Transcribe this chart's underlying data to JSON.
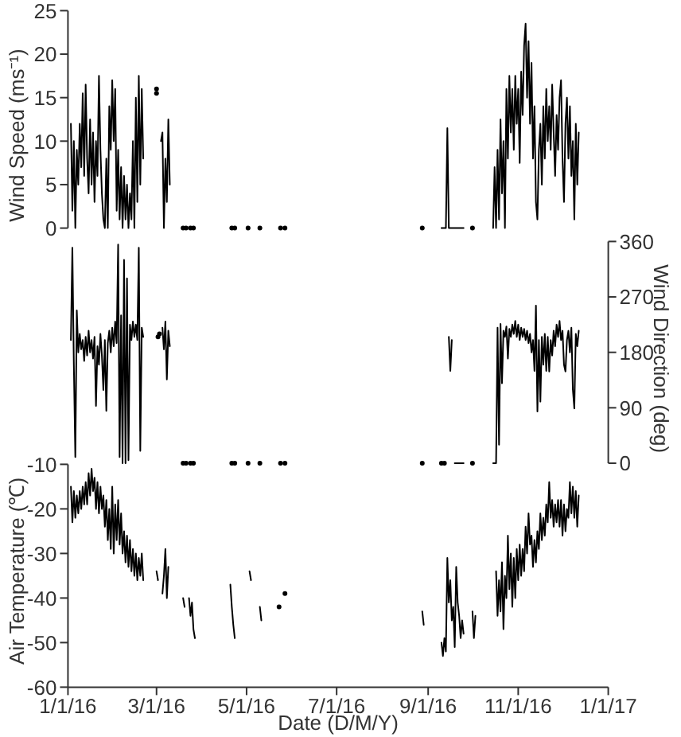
{
  "chart_data": [
    {
      "type": "line",
      "ylabel": "Wind Speed (ms⁻¹)",
      "xlim": [
        "2016-01-01",
        "2017-01-01"
      ],
      "ylim": [
        0,
        25
      ],
      "yticks": [
        0,
        5,
        10,
        15,
        20,
        25
      ],
      "tick_labels": "y",
      "x": [
        "2016-01-03",
        "2016-01-04",
        "2016-01-05",
        "2016-01-06",
        "2016-01-07",
        "2016-01-08",
        "2016-01-09",
        "2016-01-10",
        "2016-01-11",
        "2016-01-12",
        "2016-01-13",
        "2016-01-14",
        "2016-01-15",
        "2016-01-16",
        "2016-01-17",
        "2016-01-18",
        "2016-01-19",
        "2016-01-20",
        "2016-01-21",
        "2016-01-22",
        "2016-01-23",
        "2016-01-24",
        "2016-01-25",
        "2016-01-26",
        "2016-01-27",
        "2016-01-28",
        "2016-01-29",
        "2016-01-30",
        "2016-01-31",
        "2016-02-01",
        "2016-02-02",
        "2016-02-03",
        "2016-02-04",
        "2016-02-05",
        "2016-02-06",
        "2016-02-07",
        "2016-02-08",
        "2016-02-09",
        "2016-02-10",
        "2016-02-11",
        "2016-02-12",
        "2016-02-13",
        "2016-02-14",
        "2016-02-15",
        "2016-02-16",
        "2016-02-17",
        "2016-02-18",
        "2016-02-19",
        "2016-02-20",
        "2016-02-21",
        "2016-02-25",
        "2016-03-04",
        "2016-03-05",
        "2016-03-06",
        "2016-03-07",
        "2016-03-08",
        "2016-03-09",
        "2016-03-10",
        "2016-03-15",
        "2016-09-10",
        "2016-09-13",
        "2016-09-14",
        "2016-09-15",
        "2016-09-25",
        "2016-10-01",
        "2016-10-15",
        "2016-10-16",
        "2016-10-17",
        "2016-10-18",
        "2016-10-19",
        "2016-10-20",
        "2016-10-21",
        "2016-10-22",
        "2016-10-23",
        "2016-10-24",
        "2016-10-25",
        "2016-10-26",
        "2016-10-27",
        "2016-10-28",
        "2016-10-29",
        "2016-10-30",
        "2016-10-31",
        "2016-11-01",
        "2016-11-02",
        "2016-11-03",
        "2016-11-04",
        "2016-11-05",
        "2016-11-06",
        "2016-11-07",
        "2016-11-08",
        "2016-11-09",
        "2016-11-10",
        "2016-11-11",
        "2016-11-12",
        "2016-11-13",
        "2016-11-14",
        "2016-11-15",
        "2016-11-16",
        "2016-11-17",
        "2016-11-18",
        "2016-11-19",
        "2016-11-20",
        "2016-11-21",
        "2016-11-22",
        "2016-11-23",
        "2016-11-24",
        "2016-11-25",
        "2016-11-26",
        "2016-11-27",
        "2016-11-28",
        "2016-11-29",
        "2016-11-30",
        "2016-12-01",
        "2016-12-02",
        "2016-12-03",
        "2016-12-04",
        "2016-12-05",
        "2016-12-06",
        "2016-12-07",
        "2016-12-08",
        "2016-12-09",
        "2016-12-10",
        "2016-12-11",
        "2016-12-12"
      ],
      "series": [
        {
          "color": "#000000",
          "values": [
            12,
            2,
            10,
            0,
            9,
            5,
            12,
            7,
            15.5,
            6,
            16.5,
            8,
            4,
            12.5,
            5,
            11,
            3,
            10,
            6,
            17.5,
            9,
            4,
            1,
            0,
            8,
            0,
            14,
            9,
            17,
            10,
            16,
            2,
            9,
            1,
            7,
            0,
            6,
            1,
            5,
            0,
            4,
            1,
            10,
            0,
            15,
            3,
            17.5,
            5,
            16,
            8,
            null,
            10,
            11,
            0,
            8,
            3,
            12.5,
            5,
            null,
            0,
            0,
            11.5,
            0,
            0,
            null,
            0,
            7,
            0,
            9,
            1,
            12.5,
            4,
            10,
            0,
            16,
            8,
            17.5,
            11,
            16,
            9,
            17.5,
            12,
            16,
            7.5,
            18,
            13,
            21,
            23.5,
            15,
            21.5,
            12,
            19,
            8,
            14,
            3,
            1,
            9,
            12,
            5,
            14,
            8,
            16,
            10,
            14,
            9,
            16.5,
            11,
            6,
            13,
            9,
            15,
            17,
            8,
            3,
            12,
            15,
            8,
            14,
            6,
            10,
            1,
            12,
            5,
            11
          ]
        },
        {
          "type": "scatter",
          "marker": "circle",
          "color": "#000000",
          "x": [
            "2016-03-01",
            "2016-03-01",
            "2016-03-19",
            "2016-03-21",
            "2016-03-24",
            "2016-03-26",
            "2016-04-21",
            "2016-04-23",
            "2016-05-02",
            "2016-05-10",
            "2016-05-24",
            "2016-05-27",
            "2016-08-28",
            "2016-10-01"
          ],
          "values": [
            15.5,
            16,
            0,
            0,
            0,
            0,
            0,
            0,
            0,
            0,
            0,
            0,
            0,
            0
          ]
        }
      ]
    },
    {
      "type": "line",
      "y2label": "Wind Direction (deg)",
      "xlim": [
        "2016-01-01",
        "2017-01-01"
      ],
      "y2lim": [
        0,
        360
      ],
      "y2ticks": [
        0,
        90,
        180,
        270,
        360
      ],
      "tick_labels": "y2",
      "x": [
        "2016-01-03",
        "2016-01-04",
        "2016-01-05",
        "2016-01-06",
        "2016-01-07",
        "2016-01-08",
        "2016-01-09",
        "2016-01-10",
        "2016-01-11",
        "2016-01-12",
        "2016-01-13",
        "2016-01-14",
        "2016-01-15",
        "2016-01-16",
        "2016-01-17",
        "2016-01-18",
        "2016-01-19",
        "2016-01-20",
        "2016-01-21",
        "2016-01-22",
        "2016-01-23",
        "2016-01-24",
        "2016-01-25",
        "2016-01-26",
        "2016-01-27",
        "2016-01-28",
        "2016-01-29",
        "2016-01-30",
        "2016-01-31",
        "2016-02-01",
        "2016-02-02",
        "2016-02-03",
        "2016-02-04",
        "2016-02-05",
        "2016-02-06",
        "2016-02-07",
        "2016-02-08",
        "2016-02-09",
        "2016-02-10",
        "2016-02-11",
        "2016-02-12",
        "2016-02-13",
        "2016-02-14",
        "2016-02-15",
        "2016-02-16",
        "2016-02-17",
        "2016-02-18",
        "2016-02-19",
        "2016-02-20",
        "2016-02-21",
        "2016-02-25",
        "2016-03-05",
        "2016-03-06",
        "2016-03-07",
        "2016-03-08",
        "2016-03-09",
        "2016-03-10",
        "2016-03-15",
        "2016-09-15",
        "2016-09-16",
        "2016-09-17",
        "2016-09-18",
        "2016-09-19",
        "2016-09-25",
        "2016-09-28",
        "2016-10-15",
        "2016-10-17",
        "2016-10-18",
        "2016-10-19",
        "2016-10-20",
        "2016-10-21",
        "2016-10-22",
        "2016-10-23",
        "2016-10-24",
        "2016-10-25",
        "2016-10-26",
        "2016-10-27",
        "2016-10-28",
        "2016-10-29",
        "2016-10-30",
        "2016-10-31",
        "2016-11-01",
        "2016-11-02",
        "2016-11-03",
        "2016-11-04",
        "2016-11-05",
        "2016-11-06",
        "2016-11-07",
        "2016-11-08",
        "2016-11-09",
        "2016-11-10",
        "2016-11-11",
        "2016-11-12",
        "2016-11-13",
        "2016-11-14",
        "2016-11-15",
        "2016-11-16",
        "2016-11-17",
        "2016-11-18",
        "2016-11-19",
        "2016-11-20",
        "2016-11-21",
        "2016-11-22",
        "2016-11-23",
        "2016-11-24",
        "2016-11-25",
        "2016-11-26",
        "2016-11-27",
        "2016-11-28",
        "2016-11-29",
        "2016-11-30",
        "2016-12-01",
        "2016-12-02",
        "2016-12-03",
        "2016-12-04",
        "2016-12-05",
        "2016-12-06",
        "2016-12-07",
        "2016-12-08",
        "2016-12-09",
        "2016-12-10",
        "2016-12-11",
        "2016-12-12"
      ],
      "series": [
        {
          "axis": "y2",
          "color": "#000000",
          "values": [
            200,
            350,
            160,
            10,
            248,
            180,
            210,
            185,
            200,
            166,
            205,
            175,
            215,
            180,
            200,
            170,
            205,
            93,
            190,
            160,
            210,
            175,
            119,
            200,
            85,
            195,
            215,
            180,
            220,
            190,
            230,
            195,
            355,
            10,
            240,
            0,
            330,
            0,
            300,
            5,
            225,
            200,
            230,
            205,
            225,
            200,
            350,
            20,
            220,
            205,
            null,
            220,
            185,
            230,
            136,
            215,
            190,
            null,
            205,
            150,
            200,
            null,
            0,
            0,
            null,
            0,
            0,
            220,
            30,
            226,
            130,
            215,
            205,
            222,
            170,
            218,
            205,
            225,
            210,
            231,
            205,
            225,
            200,
            220,
            205,
            218,
            200,
            215,
            195,
            210,
            180,
            200,
            150,
            256,
            84,
            200,
            100,
            205,
            160,
            210,
            150,
            205,
            149,
            200,
            175,
            215,
            190,
            225,
            205,
            231,
            200,
            215,
            160,
            149,
            200,
            215,
            180,
            220,
            120,
            89,
            210,
            190,
            215
          ]
        },
        {
          "type": "scatter",
          "marker": "circle",
          "axis": "y2",
          "color": "#000000",
          "x": [
            "2016-03-02",
            "2016-03-03",
            "2016-03-19",
            "2016-03-21",
            "2016-03-24",
            "2016-03-26",
            "2016-04-21",
            "2016-04-23",
            "2016-05-02",
            "2016-05-10",
            "2016-05-24",
            "2016-05-27",
            "2016-08-28",
            "2016-09-10",
            "2016-09-12",
            "2016-10-01"
          ],
          "values": [
            205,
            210,
            0,
            0,
            0,
            0,
            0,
            0,
            0,
            0,
            0,
            0,
            0,
            0,
            0,
            0
          ]
        }
      ]
    },
    {
      "type": "line",
      "xlabel": "Date (D/M/Y)",
      "ylabel": "Air Temperature (℃)",
      "xlim": [
        "2016-01-01",
        "2017-01-01"
      ],
      "xticks": [
        {
          "value": "2016-01-01",
          "label": "1/1/16"
        },
        {
          "value": "2016-03-01",
          "label": "3/1/16"
        },
        {
          "value": "2016-05-01",
          "label": "5/1/16"
        },
        {
          "value": "2016-07-01",
          "label": "7/1/16"
        },
        {
          "value": "2016-09-01",
          "label": "9/1/16"
        },
        {
          "value": "2016-11-01",
          "label": "11/1/16"
        },
        {
          "value": "2017-01-01",
          "label": "1/1/17"
        }
      ],
      "ylim": [
        -60,
        -10
      ],
      "yticks": [
        -60,
        -50,
        -40,
        -30,
        -20,
        -10
      ],
      "x": [
        "2016-01-03",
        "2016-01-04",
        "2016-01-05",
        "2016-01-06",
        "2016-01-07",
        "2016-01-08",
        "2016-01-09",
        "2016-01-10",
        "2016-01-11",
        "2016-01-12",
        "2016-01-13",
        "2016-01-14",
        "2016-01-15",
        "2016-01-16",
        "2016-01-17",
        "2016-01-18",
        "2016-01-19",
        "2016-01-20",
        "2016-01-21",
        "2016-01-22",
        "2016-01-23",
        "2016-01-24",
        "2016-01-25",
        "2016-01-26",
        "2016-01-27",
        "2016-01-28",
        "2016-01-29",
        "2016-01-30",
        "2016-01-31",
        "2016-02-01",
        "2016-02-02",
        "2016-02-03",
        "2016-02-04",
        "2016-02-05",
        "2016-02-06",
        "2016-02-07",
        "2016-02-08",
        "2016-02-09",
        "2016-02-10",
        "2016-02-11",
        "2016-02-12",
        "2016-02-13",
        "2016-02-14",
        "2016-02-15",
        "2016-02-16",
        "2016-02-17",
        "2016-02-18",
        "2016-02-19",
        "2016-02-20",
        "2016-02-21",
        "2016-02-25",
        "2016-03-01",
        "2016-03-02",
        "2016-03-03",
        "2016-03-05",
        "2016-03-06",
        "2016-03-07",
        "2016-03-08",
        "2016-03-09",
        "2016-03-14",
        "2016-03-19",
        "2016-03-20",
        "2016-03-21",
        "2016-03-23",
        "2016-03-24",
        "2016-03-25",
        "2016-03-26",
        "2016-03-27",
        "2016-04-05",
        "2016-04-20",
        "2016-04-21",
        "2016-04-22",
        "2016-04-23",
        "2016-04-28",
        "2016-05-03",
        "2016-05-04",
        "2016-05-07",
        "2016-05-10",
        "2016-05-11",
        "2016-05-17",
        "2016-08-28",
        "2016-08-29",
        "2016-09-05",
        "2016-09-10",
        "2016-09-11",
        "2016-09-12",
        "2016-09-13",
        "2016-09-14",
        "2016-09-15",
        "2016-09-16",
        "2016-09-17",
        "2016-09-18",
        "2016-09-19",
        "2016-09-20",
        "2016-09-21",
        "2016-09-22",
        "2016-09-23",
        "2016-09-24",
        "2016-09-25",
        "2016-09-28",
        "2016-10-01",
        "2016-10-02",
        "2016-10-03",
        "2016-10-10",
        "2016-10-17",
        "2016-10-18",
        "2016-10-19",
        "2016-10-20",
        "2016-10-21",
        "2016-10-22",
        "2016-10-23",
        "2016-10-24",
        "2016-10-25",
        "2016-10-26",
        "2016-10-27",
        "2016-10-28",
        "2016-10-29",
        "2016-10-30",
        "2016-10-31",
        "2016-11-01",
        "2016-11-02",
        "2016-11-03",
        "2016-11-04",
        "2016-11-05",
        "2016-11-06",
        "2016-11-07",
        "2016-11-08",
        "2016-11-09",
        "2016-11-10",
        "2016-11-11",
        "2016-11-12",
        "2016-11-13",
        "2016-11-14",
        "2016-11-15",
        "2016-11-16",
        "2016-11-17",
        "2016-11-18",
        "2016-11-19",
        "2016-11-20",
        "2016-11-21",
        "2016-11-22",
        "2016-11-23",
        "2016-11-24",
        "2016-11-25",
        "2016-11-26",
        "2016-11-27",
        "2016-11-28",
        "2016-11-29",
        "2016-11-30",
        "2016-12-01",
        "2016-12-02",
        "2016-12-03",
        "2016-12-04",
        "2016-12-05",
        "2016-12-06",
        "2016-12-07",
        "2016-12-08",
        "2016-12-09",
        "2016-12-10",
        "2016-12-11",
        "2016-12-12"
      ],
      "series": [
        {
          "color": "#000000",
          "values": [
            -15,
            -23,
            -16,
            -22,
            -17,
            -21,
            -16,
            -20,
            -15,
            -19,
            -14,
            -19,
            -12,
            -17,
            -11,
            -16,
            -13,
            -20,
            -14,
            -21,
            -15,
            -20,
            -17,
            -24,
            -18,
            -27,
            -20,
            -29,
            -15,
            -30,
            -19,
            -27,
            -18,
            -28,
            -21,
            -30,
            -25,
            -32,
            -26,
            -33,
            -27,
            -34,
            -29,
            -35,
            -30,
            -36,
            -31,
            -35,
            -30,
            -36,
            null,
            -34,
            -36,
            null,
            -39,
            -35,
            -29,
            -40,
            -33,
            null,
            -40,
            -42,
            null,
            -40,
            -44,
            -41,
            -47,
            -49,
            null,
            -37,
            -42,
            -46,
            -49,
            null,
            -34,
            -36,
            null,
            -42,
            -45,
            null,
            -43,
            -46,
            null,
            -50,
            -53,
            -49,
            -52,
            -31,
            -41,
            -36,
            -45,
            -42,
            -51,
            -33,
            -41,
            -44,
            -49,
            -45,
            -48,
            null,
            -43,
            -49,
            -44,
            null,
            -34,
            -44,
            -36,
            -43,
            -32,
            -47,
            -35,
            -40,
            -26,
            -38,
            -30,
            -42,
            -31,
            -40,
            -29,
            -36,
            -28,
            -35,
            -29,
            -34,
            -24,
            -30,
            -21,
            -28,
            -26,
            -33,
            -27,
            -32,
            -25,
            -29,
            -21,
            -27,
            -22,
            -26,
            -19,
            -23,
            -14,
            -22,
            -18,
            -24,
            -19,
            -23,
            -18,
            -24,
            -18,
            -26,
            -19,
            -25,
            -20,
            -22,
            -14,
            -21,
            -15,
            -22,
            -16,
            -24,
            -17
          ]
        },
        {
          "type": "scatter",
          "marker": "circle",
          "color": "#000000",
          "x": [
            "2016-05-23",
            "2016-05-27"
          ],
          "values": [
            -42,
            -39
          ]
        }
      ]
    }
  ]
}
